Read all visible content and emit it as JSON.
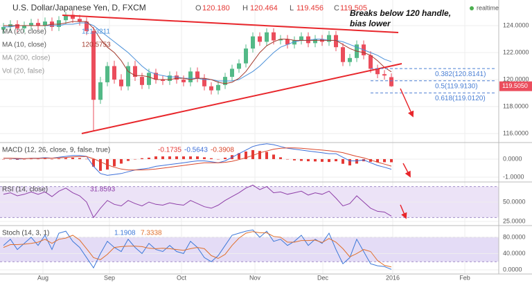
{
  "chart_data": [
    {
      "type": "candlestick",
      "title": "U.S. Dollar/Japanese Yen, D, FXCM",
      "ohlc_letters": [
        "O",
        "H",
        "L",
        "C"
      ],
      "ohlc_labels": [
        "120.180",
        "120.464",
        "119.456",
        "119.505"
      ],
      "last_price_label": "119.5050",
      "status": "realtime",
      "x": [
        0,
        1,
        2,
        3,
        4,
        5,
        6,
        7,
        8,
        9,
        10,
        11,
        12,
        13,
        14,
        15,
        16,
        17,
        18,
        19,
        20,
        21,
        22,
        23,
        24,
        25,
        26,
        27,
        28,
        29,
        30,
        31,
        32,
        33,
        34,
        35,
        36,
        37,
        38,
        39,
        40,
        41,
        42,
        43,
        44,
        45,
        46,
        47,
        48,
        49,
        50,
        51,
        52,
        53,
        54,
        55,
        56
      ],
      "open": [
        123.7,
        123.9,
        124.1,
        123.8,
        124.0,
        124.2,
        124.0,
        124.3,
        123.9,
        124.4,
        124.8,
        124.5,
        124.3,
        123.6,
        118.5,
        119.8,
        121.0,
        120.0,
        119.5,
        121.0,
        120.2,
        119.6,
        120.5,
        120.0,
        119.9,
        120.3,
        120.0,
        119.8,
        120.6,
        120.1,
        119.5,
        119.2,
        119.6,
        120.2,
        120.8,
        121.2,
        122.3,
        123.2,
        122.8,
        123.5,
        122.9,
        123.0,
        122.6,
        122.9,
        123.2,
        122.7,
        123.0,
        122.8,
        123.3,
        122.4,
        121.3,
        121.6,
        122.6,
        121.8,
        120.8,
        120.4,
        120.18
      ],
      "high": [
        124.2,
        124.4,
        124.4,
        124.3,
        124.5,
        124.5,
        124.6,
        124.6,
        124.7,
        125.0,
        125.1,
        124.8,
        124.6,
        123.9,
        120.2,
        121.3,
        121.4,
        120.4,
        121.3,
        121.4,
        120.5,
        120.8,
        120.8,
        120.3,
        120.6,
        120.6,
        120.3,
        120.9,
        120.9,
        120.4,
        119.8,
        119.9,
        120.5,
        121.1,
        121.5,
        122.6,
        123.5,
        123.5,
        123.8,
        123.8,
        123.3,
        123.3,
        123.2,
        123.5,
        123.5,
        123.3,
        123.3,
        123.6,
        123.6,
        122.7,
        121.9,
        122.9,
        122.9,
        122.1,
        121.1,
        120.7,
        120.464
      ],
      "low": [
        123.4,
        123.6,
        123.5,
        123.5,
        123.7,
        123.7,
        123.7,
        123.6,
        123.6,
        124.1,
        124.2,
        124.0,
        123.3,
        116.2,
        118.2,
        119.5,
        119.7,
        119.2,
        119.2,
        119.9,
        119.3,
        119.3,
        119.7,
        119.6,
        119.6,
        119.7,
        119.5,
        119.5,
        119.8,
        119.2,
        118.9,
        118.9,
        119.3,
        119.9,
        120.5,
        120.9,
        122.0,
        122.5,
        122.5,
        122.6,
        122.6,
        122.3,
        122.3,
        122.6,
        122.4,
        122.4,
        122.5,
        122.5,
        122.1,
        121.0,
        121.0,
        121.3,
        121.5,
        120.5,
        120.1,
        120.0,
        119.456
      ],
      "close": [
        123.9,
        124.1,
        123.8,
        124.0,
        124.2,
        124.0,
        124.3,
        123.9,
        124.4,
        124.8,
        124.5,
        124.3,
        123.6,
        118.5,
        119.8,
        121.0,
        120.0,
        119.5,
        121.0,
        120.2,
        119.6,
        120.5,
        120.0,
        119.9,
        120.3,
        120.0,
        119.8,
        120.6,
        120.1,
        119.5,
        119.2,
        119.6,
        120.2,
        120.8,
        121.2,
        122.3,
        123.2,
        122.8,
        123.5,
        122.9,
        123.0,
        122.6,
        122.9,
        123.2,
        122.7,
        123.0,
        122.8,
        123.3,
        122.4,
        121.3,
        121.6,
        122.6,
        121.8,
        120.8,
        120.4,
        120.3,
        119.505
      ],
      "up_color": "#53b987",
      "down_color": "#eb4d5c",
      "series": [
        {
          "name": "MA (20, close)",
          "color": "#4a90d9",
          "values": [
            123.9,
            123.9,
            124.0,
            124.0,
            124.0,
            124.0,
            124.0,
            124.0,
            124.0,
            124.1,
            124.1,
            124.2,
            124.2,
            124.0,
            123.6,
            123.2,
            122.8,
            122.4,
            122.0,
            121.5,
            121.0,
            120.6,
            120.4,
            120.3,
            120.2,
            120.2,
            120.1,
            120.1,
            120.1,
            120.0,
            120.0,
            119.9,
            119.9,
            119.9,
            120.0,
            120.3,
            120.6,
            121.0,
            121.5,
            122.0,
            122.4,
            122.6,
            122.8,
            122.9,
            122.9,
            123.0,
            123.0,
            122.9,
            122.9,
            122.8,
            122.6,
            122.4,
            122.2,
            122.0,
            121.8,
            121.5,
            121.3211
          ]
        },
        {
          "name": "MA (10, close)",
          "color": "#a33b2e",
          "values": [
            124.0,
            124.0,
            124.0,
            124.0,
            124.0,
            124.0,
            124.0,
            124.1,
            124.1,
            124.2,
            124.3,
            124.3,
            124.3,
            123.8,
            123.0,
            122.4,
            122.0,
            121.4,
            120.6,
            120.3,
            120.3,
            120.2,
            120.0,
            120.0,
            120.0,
            120.1,
            120.1,
            120.0,
            120.1,
            120.1,
            120.0,
            119.8,
            119.7,
            119.8,
            120.1,
            120.6,
            121.3,
            122.0,
            122.5,
            122.8,
            123.0,
            123.0,
            122.9,
            122.9,
            122.9,
            122.9,
            122.9,
            122.9,
            122.9,
            122.6,
            122.3,
            122.1,
            122.0,
            121.8,
            121.4,
            120.9,
            120.5753
          ]
        }
      ],
      "indicator_legends": [
        "MA (200, close)",
        "Vol (20, false)"
      ],
      "trendlines": [
        {
          "x": [
            8.5,
            57
          ],
          "y": [
            124.77,
            123.49
          ],
          "color": "#e8262b"
        },
        {
          "x": [
            11.3,
            57.5
          ],
          "y": [
            116.0,
            121.18
          ],
          "color": "#e8262b"
        }
      ],
      "fib_levels": [
        {
          "label": "0.382(120.8141)",
          "value": 120.8141
        },
        {
          "label": "0.5(119.9130)",
          "value": 119.913
        },
        {
          "label": "0.618(119.0120)",
          "value": 119.012
        }
      ],
      "fib_color": "#4a7fd4",
      "annotation": [
        "Breaks below 120 handle,",
        "bias lower"
      ],
      "xlim": [
        -0.5,
        71.5
      ],
      "xticks": [
        {
          "value": 5.7,
          "label": "Aug"
        },
        {
          "value": 15.3,
          "label": "Sep"
        },
        {
          "value": 25.7,
          "label": "Oct"
        },
        {
          "value": 36.3,
          "label": "Nov"
        },
        {
          "value": 46.1,
          "label": "Dec"
        },
        {
          "value": 56.2,
          "label": "2016"
        },
        {
          "value": 66.6,
          "label": "Feb"
        }
      ],
      "ylim": [
        115.385,
        125.897
      ],
      "yticks": [
        {
          "value": 124,
          "label": "124.0000"
        },
        {
          "value": 122,
          "label": "122.0000"
        },
        {
          "value": 120,
          "label": "120.0000"
        },
        {
          "value": 118,
          "label": "118.0000"
        },
        {
          "value": 116,
          "label": "116.0000"
        }
      ],
      "grid": true
    },
    {
      "type": "line",
      "legend": "MACD (12, 26, close, 9, false, true)",
      "histogram": {
        "color": "#e53935",
        "values": [
          0,
          0,
          -0.04,
          -0.01,
          0.01,
          0.01,
          0.03,
          0,
          0.03,
          0.06,
          0.08,
          0.06,
          0.01,
          -0.42,
          -0.65,
          -0.58,
          -0.4,
          -0.25,
          -0.1,
          0,
          0.05,
          0.08,
          0.15,
          0.15,
          0.15,
          0.15,
          0.15,
          0.15,
          0.15,
          0.1,
          0.05,
          0,
          0.08,
          0.22,
          0.33,
          0.42,
          0.5,
          0.45,
          0.4,
          0.25,
          0.1,
          -0.02,
          -0.07,
          -0.1,
          -0.12,
          -0.13,
          -0.15,
          -0.16,
          -0.12,
          -0.26,
          -0.35,
          -0.25,
          -0.12,
          -0.15,
          -0.18,
          -0.17,
          -0.1735
        ]
      },
      "series": [
        {
          "color": "#3c6fd8",
          "values": [
            0.05,
            0.05,
            0.0,
            0.02,
            0.05,
            0.05,
            0.08,
            0.05,
            0.1,
            0.15,
            0.2,
            0.2,
            0.15,
            -0.4,
            -0.8,
            -0.9,
            -0.85,
            -0.8,
            -0.7,
            -0.6,
            -0.55,
            -0.5,
            -0.4,
            -0.35,
            -0.3,
            -0.25,
            -0.2,
            -0.15,
            -0.1,
            -0.1,
            -0.15,
            -0.2,
            -0.1,
            0.1,
            0.3,
            0.5,
            0.7,
            0.8,
            0.85,
            0.8,
            0.7,
            0.6,
            0.55,
            0.5,
            0.45,
            0.4,
            0.35,
            0.3,
            0.3,
            0.1,
            -0.1,
            -0.1,
            -0.05,
            -0.2,
            -0.35,
            -0.45,
            -0.5643
          ]
        },
        {
          "color": "#d9472b",
          "values": [
            0.05,
            0.05,
            0.04,
            0.03,
            0.04,
            0.04,
            0.05,
            0.05,
            0.07,
            0.09,
            0.12,
            0.14,
            0.14,
            0.02,
            -0.15,
            -0.32,
            -0.45,
            -0.55,
            -0.6,
            -0.6,
            -0.6,
            -0.58,
            -0.55,
            -0.5,
            -0.45,
            -0.4,
            -0.35,
            -0.3,
            -0.25,
            -0.2,
            -0.2,
            -0.2,
            -0.18,
            -0.12,
            -0.03,
            0.08,
            0.2,
            0.35,
            0.45,
            0.55,
            0.6,
            0.62,
            0.62,
            0.6,
            0.57,
            0.53,
            0.5,
            0.46,
            0.42,
            0.36,
            0.25,
            0.15,
            0.07,
            -0.05,
            -0.17,
            -0.28,
            -0.3908
          ]
        }
      ],
      "ylim": [
        -1.23,
        0.88
      ],
      "yticks": [
        {
          "value": 0,
          "label": "0.0000"
        },
        {
          "value": -1,
          "label": "-1.0000"
        }
      ],
      "grid": true
    },
    {
      "type": "line",
      "legend": "RSI (14, close)",
      "band": [
        30,
        70
      ],
      "band_color": "#ece3f7",
      "series": [
        {
          "color": "#8e3fa8",
          "values": [
            60,
            62,
            58,
            60,
            63,
            60,
            63,
            57,
            64,
            68,
            62,
            58,
            50,
            30,
            42,
            52,
            47,
            45,
            52,
            48,
            45,
            50,
            47,
            46,
            49,
            47,
            46,
            52,
            48,
            44,
            42,
            46,
            52,
            57,
            62,
            68,
            72,
            66,
            70,
            62,
            63,
            60,
            62,
            64,
            59,
            62,
            60,
            64,
            55,
            45,
            48,
            58,
            50,
            42,
            38,
            37,
            31.8593
          ]
        }
      ],
      "ylim": [
        20.5,
        75
      ],
      "yticks": [
        {
          "value": 50,
          "label": "50.0000"
        },
        {
          "value": 25,
          "label": "25.0000"
        }
      ],
      "grid": true
    },
    {
      "type": "line",
      "legend": "Stoch (14, 3, 1)",
      "band": [
        20,
        80
      ],
      "band_color": "#e4dcf6",
      "series": [
        {
          "color": "#3c78d8",
          "values": [
            60,
            75,
            50,
            65,
            80,
            60,
            85,
            50,
            90,
            95,
            70,
            55,
            30,
            5,
            40,
            70,
            55,
            45,
            75,
            55,
            40,
            65,
            50,
            45,
            60,
            45,
            40,
            70,
            55,
            30,
            20,
            35,
            60,
            85,
            90,
            95,
            98,
            80,
            95,
            70,
            75,
            60,
            70,
            85,
            60,
            75,
            65,
            90,
            50,
            15,
            30,
            75,
            45,
            15,
            10,
            8,
            1.1908
          ]
        },
        {
          "color": "#e0702c",
          "values": [
            55,
            62,
            62,
            63,
            65,
            68,
            75,
            65,
            75,
            78,
            85,
            73,
            52,
            30,
            25,
            38,
            55,
            57,
            58,
            58,
            57,
            53,
            52,
            53,
            52,
            50,
            48,
            52,
            55,
            52,
            35,
            28,
            38,
            60,
            78,
            90,
            94,
            91,
            91,
            82,
            80,
            68,
            68,
            72,
            72,
            73,
            67,
            77,
            68,
            52,
            32,
            40,
            50,
            45,
            23,
            11,
            7.3338
          ]
        }
      ],
      "ylim": [
        -8.5,
        107
      ],
      "yticks": [
        {
          "value": 80,
          "label": "80.0000"
        },
        {
          "value": 40,
          "label": "40.0000"
        },
        {
          "value": 0,
          "label": "0.0000"
        }
      ],
      "grid": true
    }
  ]
}
